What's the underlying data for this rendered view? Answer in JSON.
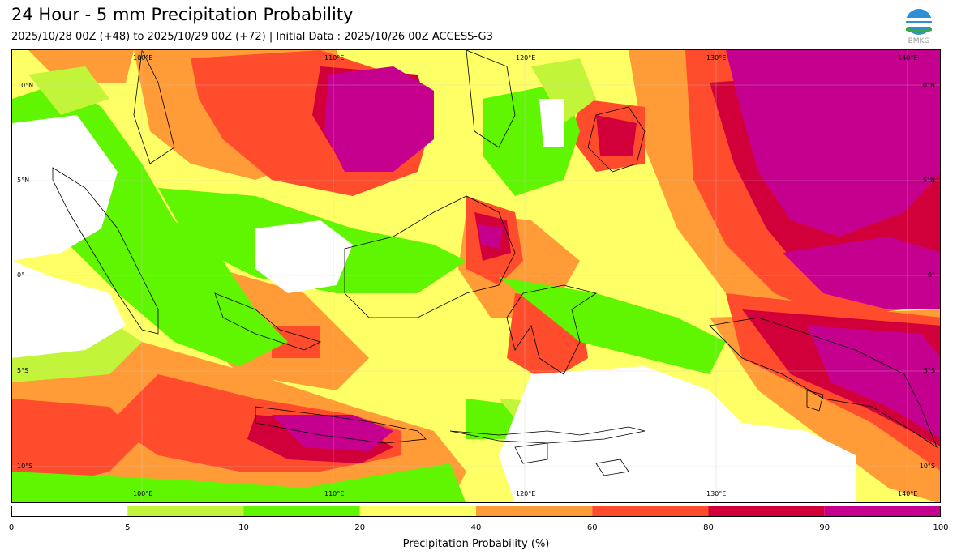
{
  "title": "24 Hour - 5 mm Precipitation Probability",
  "subtitle": "2025/10/28 00Z (+48) to 2025/10/29 00Z (+72) | Initial Data : 2025/10/26 00Z ACCESS-G3",
  "logo": {
    "icon": "bmkg-logo",
    "text": "BMKG"
  },
  "map": {
    "region": "Indonesia maritime continent",
    "lon_labels_top": [
      "100°E",
      "110°E",
      "120°E",
      "130°E",
      "140°E"
    ],
    "lon_labels_bottom": [
      "100°E",
      "110°E",
      "120°E",
      "130°E",
      "140°E"
    ],
    "lat_labels_left": [
      "10°N",
      "5°N",
      "0°",
      "5°S",
      "10°S"
    ],
    "lat_labels_right": [
      "10°N",
      "5°N",
      "0°",
      "5°S",
      "10°S"
    ]
  },
  "colorbar": {
    "ticks": [
      "0",
      "5",
      "10",
      "20",
      "40",
      "60",
      "80",
      "90",
      "100"
    ],
    "bins": [
      {
        "from": 0,
        "to": 5,
        "color": "#ffffff"
      },
      {
        "from": 5,
        "to": 10,
        "color": "#c2f53a"
      },
      {
        "from": 10,
        "to": 20,
        "color": "#60f500"
      },
      {
        "from": 20,
        "to": 40,
        "color": "#ffff66"
      },
      {
        "from": 40,
        "to": 60,
        "color": "#ff9c38"
      },
      {
        "from": 60,
        "to": 80,
        "color": "#ff4c2c"
      },
      {
        "from": 80,
        "to": 90,
        "color": "#d2003a"
      },
      {
        "from": 90,
        "to": 100,
        "color": "#c5008f"
      }
    ],
    "label": "Precipitation Probability (%)"
  }
}
